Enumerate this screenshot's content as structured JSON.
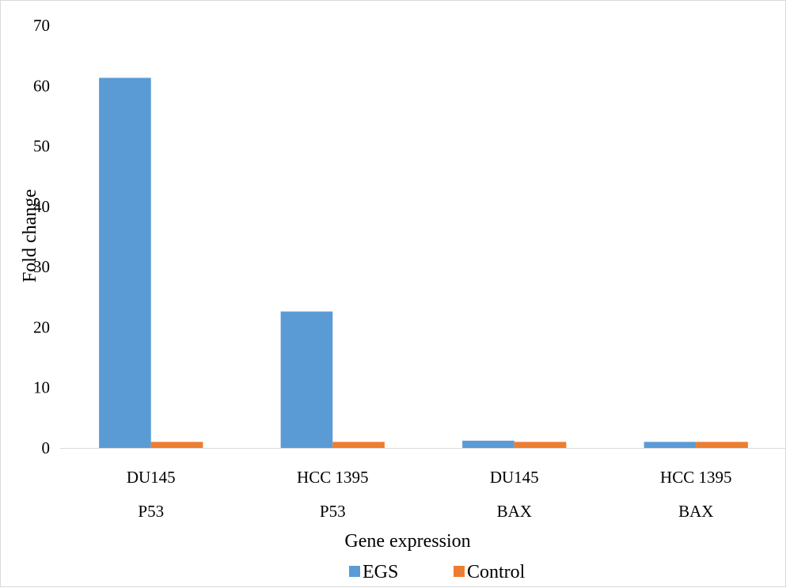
{
  "chart_data": {
    "type": "bar",
    "categories": [
      {
        "sample": "DU145",
        "gene": "P53"
      },
      {
        "sample": "HCC 1395",
        "gene": "P53"
      },
      {
        "sample": "DU145",
        "gene": "BAX"
      },
      {
        "sample": "HCC 1395",
        "gene": "BAX"
      }
    ],
    "series": [
      {
        "name": "EGS",
        "color": "#5b9bd5",
        "values": [
          61.3,
          22.6,
          1.2,
          1.0
        ]
      },
      {
        "name": "Control",
        "color": "#ed7d31",
        "values": [
          1.0,
          1.0,
          1.0,
          1.0
        ]
      }
    ],
    "title": "",
    "xlabel": "Gene expression",
    "ylabel": "Fold change",
    "ylim": [
      0,
      70
    ],
    "yticks": [
      0,
      10,
      20,
      30,
      40,
      50,
      60,
      70
    ],
    "grid": false,
    "legend_position": "bottom"
  }
}
